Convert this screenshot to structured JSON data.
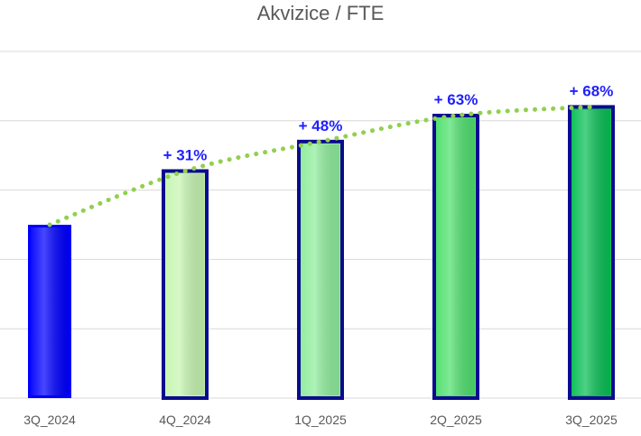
{
  "chart_data": {
    "type": "bar",
    "title": "Akvizice / FTE",
    "xlabel": "",
    "ylabel": "",
    "categories": [
      "3Q_2024",
      "4Q_2024",
      "1Q_2025",
      "2Q_2025",
      "3Q_2025"
    ],
    "values": [
      100,
      131,
      148,
      163,
      168
    ],
    "data_labels": [
      "",
      "+ 31%",
      "+ 48%",
      "+ 63%",
      "+ 68%"
    ],
    "ylim": [
      0,
      200
    ],
    "grid": true,
    "trendline": {
      "type": "polynomial",
      "style": "dotted",
      "color": "#92d050"
    },
    "colors": {
      "bar_fills": [
        "#0000ff",
        "#c6f5b0",
        "#8eed9c",
        "#4fe06e",
        "#09bf55"
      ],
      "bar_outline": "#0b0b8f",
      "label": "#1f1fff",
      "grid": "#d9d9d9"
    }
  }
}
